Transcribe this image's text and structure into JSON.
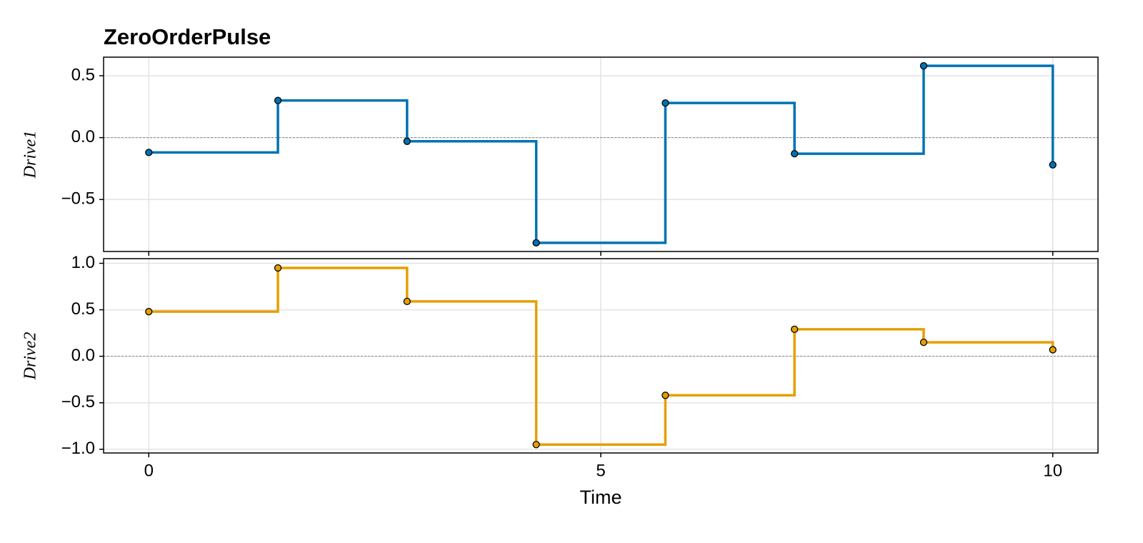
{
  "chart_data": [
    {
      "type": "step",
      "title": "ZeroOrderPulse",
      "ylabel": "Drive1",
      "x": [
        0,
        1.4286,
        2.8571,
        4.2857,
        5.7143,
        7.1429,
        8.5714,
        10
      ],
      "series": [
        {
          "name": "Drive1",
          "color": "#0072b2",
          "values": [
            -0.12,
            0.3,
            -0.03,
            -0.85,
            0.28,
            -0.13,
            0.58,
            -0.22
          ]
        }
      ],
      "xlim": [
        -0.5,
        10.5
      ],
      "xticks": [
        0,
        5,
        10
      ],
      "ylim": [
        -0.92,
        0.65
      ],
      "yticks": [
        {
          "value": -0.5,
          "label": "−0.5"
        },
        {
          "value": 0,
          "label": "0.0"
        },
        {
          "value": 0.5,
          "label": "0.5"
        }
      ],
      "grid": true,
      "zero_line": true,
      "markers": true
    },
    {
      "type": "step",
      "ylabel": "Drive2",
      "xlabel": "Time",
      "x": [
        0,
        1.4286,
        2.8571,
        4.2857,
        5.7143,
        7.1429,
        8.5714,
        10
      ],
      "series": [
        {
          "name": "Drive2",
          "color": "#e69f00",
          "values": [
            0.48,
            0.95,
            0.59,
            -0.95,
            -0.42,
            0.29,
            0.15,
            0.07
          ]
        }
      ],
      "xlim": [
        -0.5,
        10.5
      ],
      "xticks": [
        0,
        5,
        10
      ],
      "ylim": [
        -1.04,
        1.05
      ],
      "yticks": [
        {
          "value": -1,
          "label": "−1.0"
        },
        {
          "value": -0.5,
          "label": "−0.5"
        },
        {
          "value": 0,
          "label": "0.0"
        },
        {
          "value": 0.5,
          "label": "0.5"
        },
        {
          "value": 1,
          "label": "1.0"
        }
      ],
      "grid": true,
      "zero_line": true,
      "markers": true
    }
  ]
}
